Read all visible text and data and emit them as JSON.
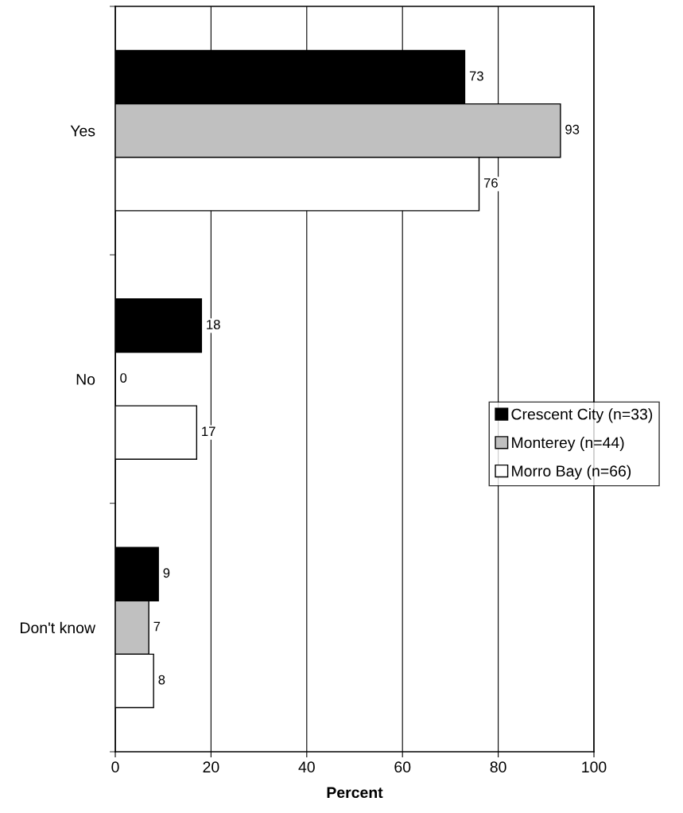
{
  "chart_data": {
    "type": "bar",
    "orientation": "horizontal",
    "xlabel": "Percent",
    "categories": [
      "Yes",
      "No",
      "Don't know"
    ],
    "series": [
      {
        "name": "Crescent City (n=33)",
        "color": "#000000",
        "values": [
          73,
          18,
          9
        ]
      },
      {
        "name": "Monterey (n=44)",
        "color": "#c0c0c0",
        "values": [
          93,
          0,
          7
        ]
      },
      {
        "name": "Morro Bay (n=66)",
        "color": "#ffffff",
        "values": [
          76,
          17,
          8
        ]
      }
    ],
    "xlim": [
      0,
      100
    ],
    "xticks": [
      0,
      20,
      40,
      60,
      80,
      100
    ],
    "grid": "x",
    "legend": "right",
    "data_labels": true
  }
}
